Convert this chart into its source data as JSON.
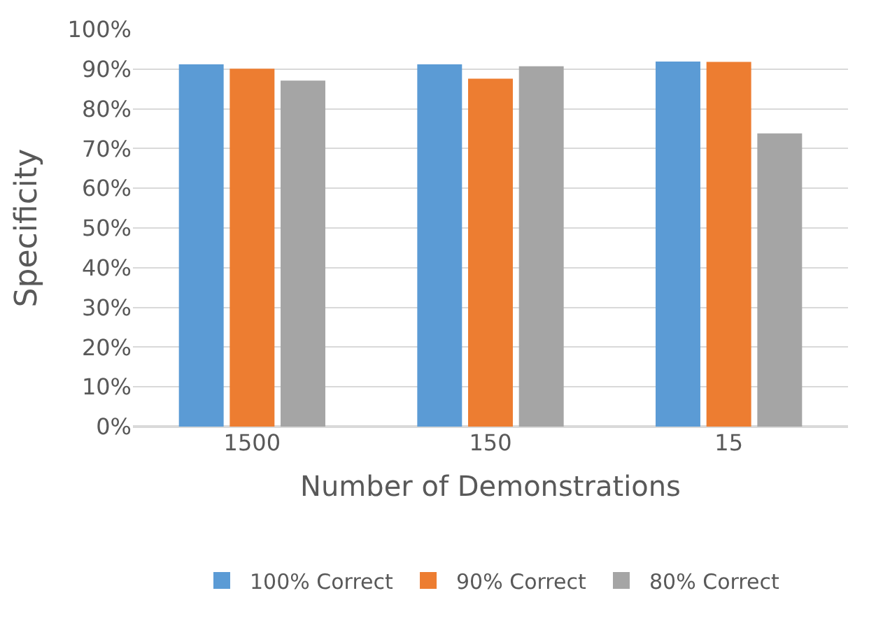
{
  "chart_data": {
    "type": "bar",
    "xlabel": "Number of Demonstrations",
    "ylabel": "Specificity",
    "categories": [
      "1500",
      "150",
      "15"
    ],
    "series": [
      {
        "name": "100% Correct",
        "color": "#5b9bd5",
        "values": [
          91.2,
          91.2,
          91.9
        ]
      },
      {
        "name": "90% Correct",
        "color": "#ed7d31",
        "values": [
          90.1,
          87.6,
          91.8
        ]
      },
      {
        "name": "80% Correct",
        "color": "#a5a5a5",
        "values": [
          87.1,
          90.7,
          73.8
        ]
      }
    ],
    "ylim": [
      0,
      100
    ],
    "yticks": [
      {
        "value": 0,
        "label": "0%"
      },
      {
        "value": 10,
        "label": "10%"
      },
      {
        "value": 20,
        "label": "20%"
      },
      {
        "value": 30,
        "label": "30%"
      },
      {
        "value": 40,
        "label": "40%"
      },
      {
        "value": 50,
        "label": "50%"
      },
      {
        "value": 60,
        "label": "60%"
      },
      {
        "value": 70,
        "label": "70%"
      },
      {
        "value": 80,
        "label": "80%"
      },
      {
        "value": 90,
        "label": "90%"
      },
      {
        "value": 100,
        "label": "100%"
      }
    ],
    "grid": "y",
    "legend": "bottom"
  }
}
